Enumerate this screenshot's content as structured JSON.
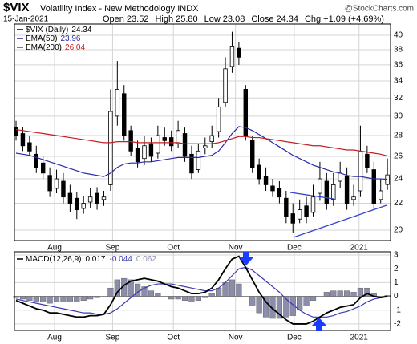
{
  "chart_data": [
    {
      "type": "candlestick",
      "title": "$VIX",
      "subtitle": "Volatility Index - New Methodology  INDX",
      "source": "@StockCharts.com",
      "date": "15-Jan-2021",
      "quote": [
        {
          "name": "Open",
          "value": 23.52
        },
        {
          "name": "High",
          "value": 25.8,
          "value_label": "25.80"
        },
        {
          "name": "Low",
          "value": 23.08
        },
        {
          "name": "Close",
          "value": 24.34
        },
        {
          "name": "Chg",
          "value": 1.09,
          "value_label": "+1.09"
        }
      ],
      "change_pct": {
        "value": 4.69,
        "label": "(+4.69%)"
      },
      "name": "$VIX (Daily)",
      "open": [
        28.8,
        28.2,
        27.3,
        26.2,
        25.4,
        24.3,
        23.2,
        23.8,
        22.8,
        22.4,
        21.6,
        22.1,
        22.8,
        22.3,
        23.5,
        30.0,
        32.5,
        28.5,
        26.8,
        25.8,
        27.2,
        26.3,
        27.8,
        27.8,
        27.2,
        28.2,
        26.2,
        24.8,
        26.8,
        27.4,
        28.4,
        31.5,
        35.8,
        38.2,
        33.0,
        27.5,
        25.2,
        24.2,
        23.4,
        23.2,
        22.4,
        21.2,
        20.8,
        21.8,
        21.3,
        22.8,
        23.8,
        22.3,
        23.8,
        24.2,
        22.3,
        23.0,
        26.2,
        24.8,
        22.3,
        23.52
      ],
      "high": [
        29.5,
        28.9,
        28.0,
        27.0,
        26.0,
        25.0,
        24.8,
        24.5,
        23.5,
        22.9,
        22.6,
        23.2,
        23.3,
        23.0,
        33.0,
        36.5,
        33.5,
        29.0,
        27.5,
        28.0,
        27.8,
        29.0,
        28.8,
        28.5,
        29.5,
        28.8,
        27.0,
        27.2,
        27.8,
        29.0,
        32.0,
        37.0,
        40.5,
        39.0,
        33.5,
        28.0,
        25.8,
        25.0,
        24.0,
        23.8,
        23.0,
        22.0,
        22.3,
        22.5,
        23.5,
        25.5,
        24.5,
        24.5,
        25.5,
        25.0,
        23.5,
        29.0,
        27.0,
        25.5,
        24.0,
        25.8
      ],
      "low": [
        27.5,
        26.5,
        26.0,
        24.5,
        24.0,
        22.5,
        22.8,
        22.0,
        21.3,
        20.8,
        21.2,
        21.6,
        21.5,
        21.8,
        23.0,
        29.0,
        27.5,
        26.0,
        25.0,
        25.2,
        25.5,
        25.8,
        27.0,
        26.5,
        26.8,
        25.5,
        24.0,
        24.5,
        26.2,
        26.8,
        27.8,
        31.0,
        35.0,
        36.0,
        27.5,
        24.5,
        23.5,
        23.0,
        22.5,
        22.0,
        20.5,
        19.8,
        20.5,
        20.5,
        21.0,
        22.2,
        21.5,
        21.8,
        23.2,
        21.5,
        21.8,
        22.5,
        24.5,
        21.5,
        22.0,
        23.08
      ],
      "close": [
        28.0,
        27.0,
        26.5,
        25.0,
        24.5,
        23.0,
        24.0,
        22.5,
        22.0,
        21.5,
        22.0,
        22.5,
        22.0,
        22.5,
        30.5,
        33.0,
        28.0,
        26.5,
        25.5,
        27.0,
        26.0,
        28.0,
        27.5,
        27.0,
        28.5,
        26.0,
        24.5,
        26.5,
        27.0,
        28.0,
        31.0,
        35.5,
        38.5,
        37.0,
        28.0,
        25.0,
        24.0,
        23.5,
        23.0,
        22.5,
        21.0,
        20.5,
        21.5,
        21.0,
        22.5,
        24.0,
        22.0,
        23.5,
        24.5,
        22.0,
        22.5,
        26.5,
        25.0,
        22.0,
        23.0,
        24.34
      ],
      "series": [
        {
          "name": "EMA(50)",
          "color": "#2a2aa8",
          "values": [
            26.3,
            26.2,
            26.1,
            25.9,
            25.7,
            25.5,
            25.3,
            25.1,
            24.9,
            24.7,
            24.5,
            24.4,
            24.3,
            24.2,
            24.5,
            25.0,
            25.3,
            25.4,
            25.4,
            25.5,
            25.5,
            25.6,
            25.7,
            25.8,
            25.9,
            25.9,
            25.9,
            25.9,
            26.0,
            26.1,
            26.5,
            27.3,
            28.2,
            28.9,
            28.8,
            28.5,
            28.1,
            27.7,
            27.3,
            26.9,
            26.5,
            26.1,
            25.8,
            25.5,
            25.2,
            25.0,
            24.8,
            24.6,
            24.5,
            24.3,
            24.2,
            24.2,
            24.1,
            24.0,
            24.0,
            23.96
          ]
        },
        {
          "name": "EMA(200)",
          "color": "#c41e1e",
          "values": [
            28.6,
            28.5,
            28.4,
            28.3,
            28.2,
            28.1,
            28.0,
            27.9,
            27.8,
            27.7,
            27.6,
            27.5,
            27.4,
            27.3,
            27.3,
            27.4,
            27.4,
            27.4,
            27.3,
            27.3,
            27.3,
            27.3,
            27.3,
            27.3,
            27.3,
            27.2,
            27.2,
            27.2,
            27.2,
            27.2,
            27.3,
            27.5,
            27.7,
            27.9,
            27.9,
            27.8,
            27.8,
            27.7,
            27.6,
            27.5,
            27.4,
            27.3,
            27.2,
            27.1,
            27.0,
            27.0,
            26.9,
            26.8,
            26.7,
            26.6,
            26.6,
            26.5,
            26.4,
            26.3,
            26.2,
            26.04
          ]
        }
      ],
      "log_scale": true,
      "grid": true,
      "xlim": [
        -0.24,
        55.46
      ],
      "xticks": [
        {
          "value": 5.7,
          "label": "Aug"
        },
        {
          "value": 14.3,
          "label": "Sep"
        },
        {
          "value": 23.3,
          "label": "Oct"
        },
        {
          "value": 32.5,
          "label": "Nov"
        },
        {
          "value": 41.2,
          "label": "Dec"
        },
        {
          "value": 50.8,
          "label": "2021"
        }
      ],
      "ylim": [
        19.27,
        41.63
      ],
      "yticks": [
        20,
        22,
        24,
        26,
        28,
        30,
        32,
        34,
        36,
        38,
        40
      ]
    },
    {
      "type": "macd",
      "name": "MACD(12,26,9)",
      "series": [
        {
          "kind": "histogram",
          "color": "#8c8cab",
          "values": [
            -0.1,
            -0.2,
            -0.3,
            -0.4,
            -0.4,
            -0.5,
            -0.4,
            -0.4,
            -0.4,
            -0.4,
            -0.3,
            -0.2,
            -0.1,
            0.0,
            0.6,
            1.2,
            1.3,
            1.2,
            0.9,
            0.7,
            0.4,
            0.2,
            0.0,
            -0.2,
            -0.2,
            -0.3,
            -0.4,
            -0.3,
            -0.1,
            0.2,
            0.6,
            1.0,
            1.2,
            0.9,
            0.0,
            -0.7,
            -1.2,
            -1.5,
            -1.6,
            -1.6,
            -1.5,
            -1.4,
            -1.0,
            -0.7,
            -0.3,
            0.0,
            0.3,
            0.4,
            0.4,
            0.4,
            0.3,
            0.6,
            0.6,
            0.2,
            0.0,
            0.062
          ]
        },
        {
          "kind": "line",
          "color": "#3a3ab4",
          "values": [
            -0.2,
            -0.3,
            -0.4,
            -0.5,
            -0.6,
            -0.7,
            -0.8,
            -0.9,
            -1.0,
            -1.1,
            -1.2,
            -1.2,
            -1.3,
            -1.3,
            -1.2,
            -0.9,
            -0.5,
            -0.1,
            0.3,
            0.6,
            0.8,
            0.9,
            0.9,
            0.9,
            0.8,
            0.7,
            0.6,
            0.5,
            0.4,
            0.4,
            0.6,
            1.0,
            1.5,
            2.0,
            2.1,
            1.9,
            1.5,
            1.1,
            0.7,
            0.3,
            -0.2,
            -0.6,
            -1.0,
            -1.3,
            -1.5,
            -1.5,
            -1.5,
            -1.4,
            -1.2,
            -1.1,
            -0.9,
            -0.7,
            -0.4,
            -0.2,
            -0.1,
            -0.044
          ]
        },
        {
          "kind": "line",
          "color": "#000000",
          "values": [
            -0.3,
            -0.5,
            -0.7,
            -0.9,
            -1.0,
            -1.2,
            -1.2,
            -1.3,
            -1.4,
            -1.5,
            -1.5,
            -1.4,
            -1.4,
            -1.3,
            -0.6,
            0.3,
            0.8,
            1.1,
            1.2,
            1.3,
            1.2,
            1.1,
            0.9,
            0.7,
            0.6,
            0.4,
            0.2,
            0.2,
            0.3,
            0.6,
            1.2,
            2.0,
            2.7,
            2.9,
            2.1,
            1.2,
            0.3,
            -0.4,
            -0.9,
            -1.3,
            -1.7,
            -2.0,
            -2.0,
            -2.0,
            -1.8,
            -1.5,
            -1.2,
            -1.0,
            -0.8,
            -0.7,
            -0.6,
            -0.1,
            0.2,
            0.0,
            -0.1,
            0.017
          ]
        }
      ],
      "legend_order": [
        2,
        1,
        0
      ],
      "grid": true,
      "xlim": [
        -0.24,
        55.46
      ],
      "xticks": [
        {
          "value": 5.7,
          "label": "Aug"
        },
        {
          "value": 14.3,
          "label": "Sep"
        },
        {
          "value": 23.3,
          "label": "Oct"
        },
        {
          "value": 32.5,
          "label": "Nov"
        },
        {
          "value": 41.2,
          "label": "Dec"
        },
        {
          "value": 50.8,
          "label": "2021"
        }
      ],
      "ylim": [
        -2.47,
        3.23
      ],
      "yticks": [
        -2,
        -1,
        0,
        1,
        2,
        3
      ]
    }
  ]
}
